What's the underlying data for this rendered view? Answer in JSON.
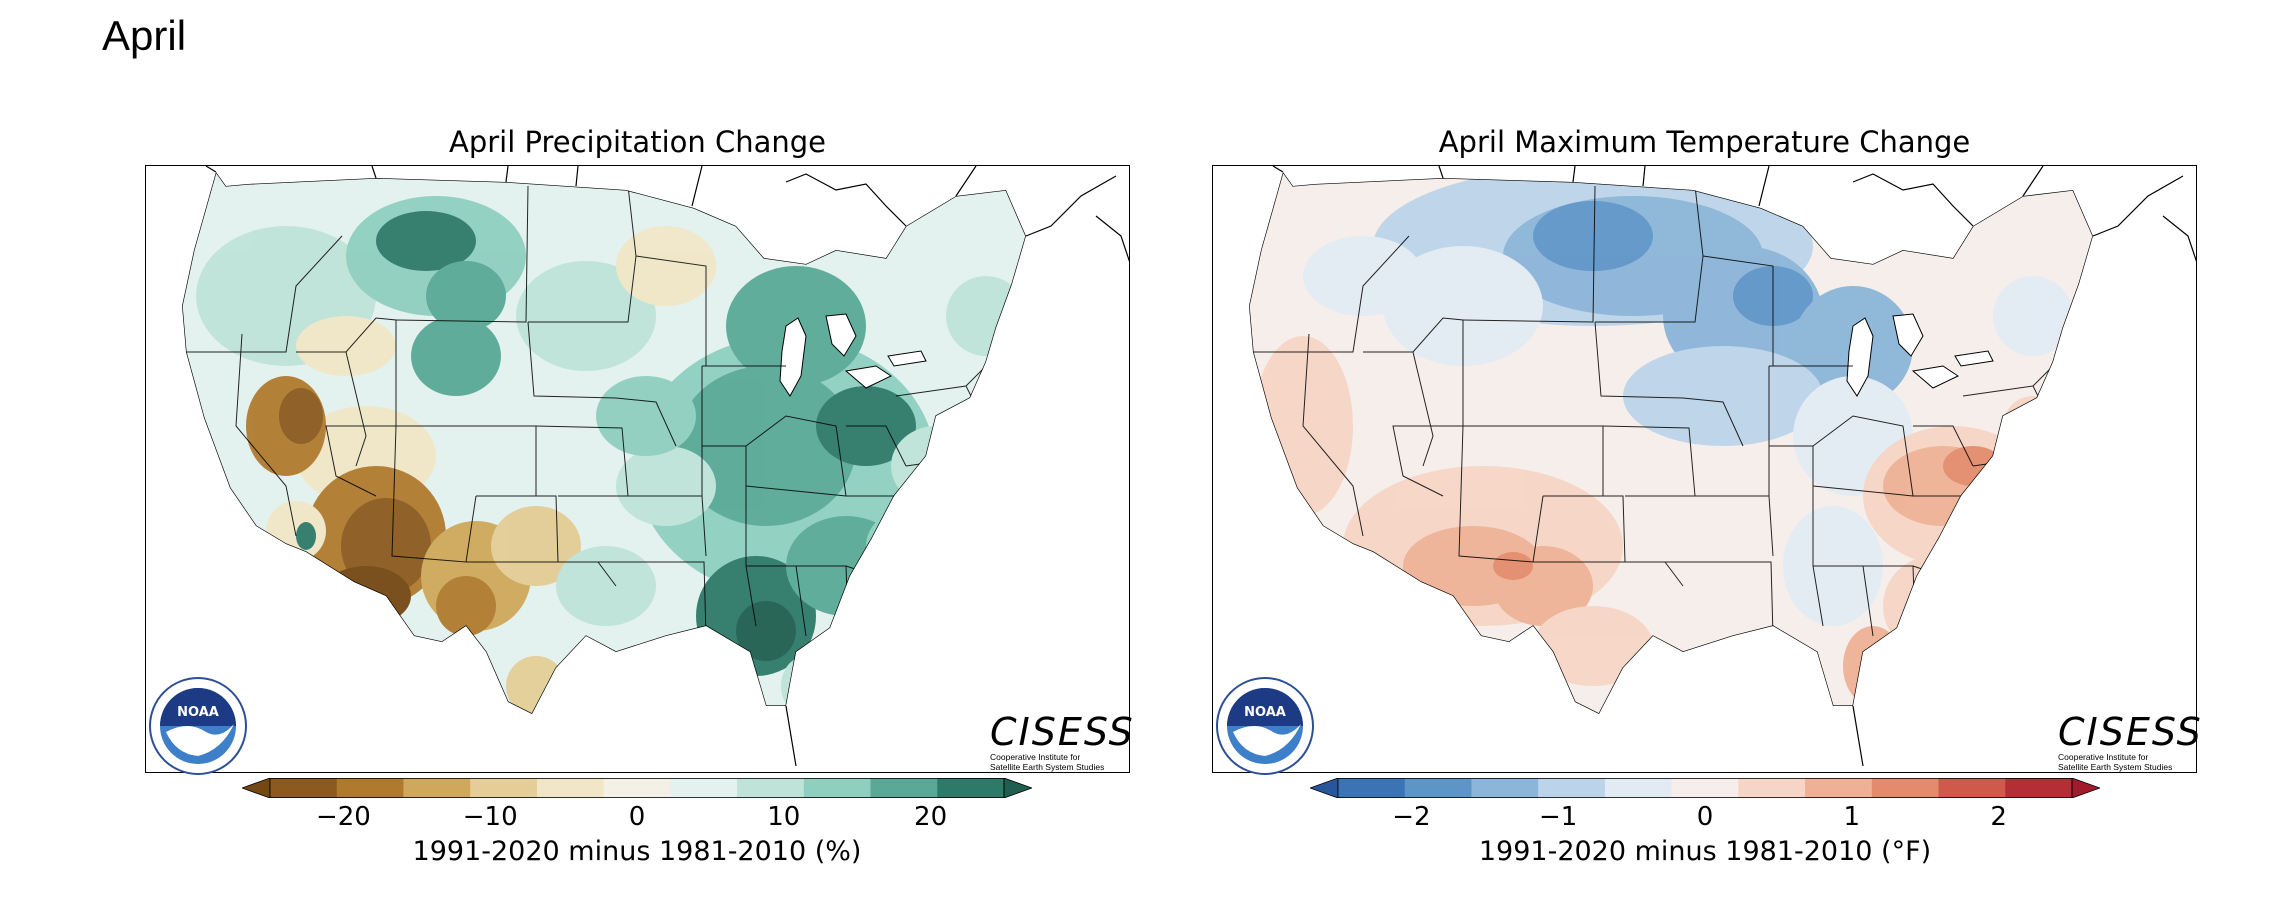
{
  "page_title": "April",
  "panels": [
    {
      "title": "April Precipitation Change",
      "colorbar_label": "1991-2020 minus 1981-2010 (%)",
      "ticks": [
        "−20",
        "−10",
        "0",
        "10",
        "20"
      ],
      "tick_values": [
        -20,
        -10,
        0,
        10,
        20
      ],
      "range": [
        -25,
        25
      ],
      "colors": [
        "#8c5a1e",
        "#b07a2e",
        "#cfa85b",
        "#e4cd96",
        "#f1e6c7",
        "#f5f0e6",
        "#e3f2ee",
        "#bfe3d9",
        "#8fcfbf",
        "#5aa996",
        "#2e7a69"
      ],
      "extend_low": "#744812",
      "extend_high": "#1f5e50"
    },
    {
      "title": "April Maximum Temperature Change",
      "colorbar_label": "1991-2020 minus 1981-2010 (°F)",
      "ticks": [
        "−2",
        "−1",
        "0",
        "1",
        "2"
      ],
      "tick_values": [
        -2,
        -1,
        0,
        1,
        2
      ],
      "range": [
        -2.5,
        2.5
      ],
      "colors": [
        "#3b74b5",
        "#5e95c9",
        "#8bb5d9",
        "#bcd4ea",
        "#e2ebf4",
        "#f6eeea",
        "#f6d5c6",
        "#eeb196",
        "#e38b6c",
        "#cf5a4b",
        "#b42f35"
      ],
      "extend_low": "#27569a",
      "extend_high": "#a01c2c"
    }
  ],
  "logos": {
    "noaa_text": "NOAA",
    "cisess_title": "CISESS",
    "cisess_subtitle_1": "Cooperative Institute for",
    "cisess_subtitle_2": "Satellite Earth System Studies"
  }
}
